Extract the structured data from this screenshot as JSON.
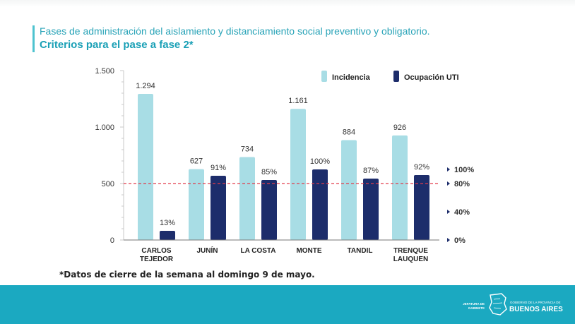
{
  "header": {
    "title": "Fases de administración del aislamiento y distanciamiento social preventivo y obligatorio.",
    "subtitle": "Criterios para el pase a fase 2*"
  },
  "chart_data": {
    "type": "bar",
    "categories": [
      "CARLOS\nTEJEDOR",
      "JUNÍN",
      "LA COSTA",
      "MONTE",
      "TANDIL",
      "TRENQUE\nLAUQUEN"
    ],
    "series": [
      {
        "name": "Incidencia",
        "axis": "left",
        "color": "#a8dde5",
        "values": [
          1294,
          627,
          734,
          1161,
          884,
          926
        ],
        "labels": [
          "1.294",
          "627",
          "734",
          "1.161",
          "884",
          "926"
        ]
      },
      {
        "name": "Ocupación UTI",
        "axis": "right",
        "color": "#1d2d6b",
        "values": [
          13,
          91,
          85,
          100,
          87,
          92
        ],
        "labels": [
          "13%",
          "91%",
          "85%",
          "100%",
          "87%",
          "92%"
        ]
      }
    ],
    "y_left": {
      "ylim": [
        0,
        1500
      ],
      "ticks": [
        0,
        500,
        1000,
        1500
      ],
      "tick_labels": [
        "0",
        "500",
        "1.000",
        "1.500"
      ]
    },
    "y_right": {
      "ylim": [
        0,
        100
      ],
      "ticks": [
        0,
        40,
        80,
        100
      ],
      "tick_labels": [
        "0%",
        "40%",
        "80%",
        "100%"
      ]
    },
    "reference_line": {
      "value": 80,
      "axis": "right",
      "style": "dashed",
      "color": "#e23b4b"
    },
    "legend": {
      "placement": "top-right"
    },
    "grid": false
  },
  "footnote": "*Datos de cierre de la semana al domingo 9 de mayo.",
  "footer": {
    "dept_label": "JEFATURA DE GABINETE",
    "gov_label": "GOBIERNO DE LA PROVINCIA DE",
    "province_label": "BUENOS AIRES",
    "bg_color": "#1ba9c1"
  }
}
